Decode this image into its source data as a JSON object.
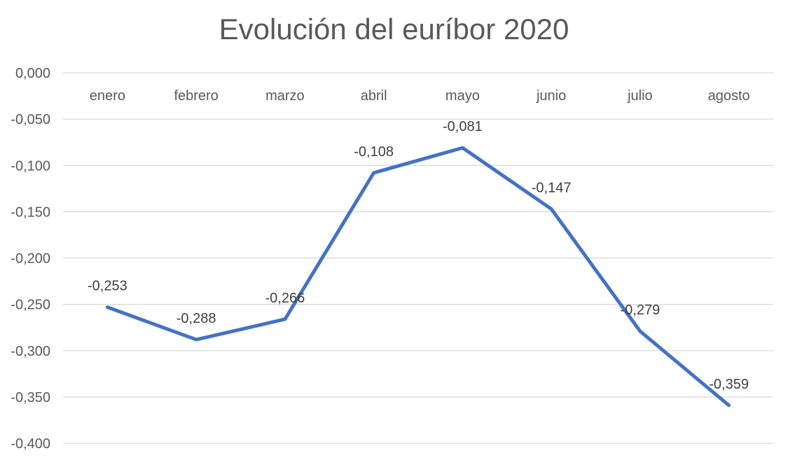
{
  "chart_data": {
    "type": "line",
    "title": "Evolución del euríbor 2020",
    "xlabel": "",
    "ylabel": "",
    "categories": [
      "enero",
      "febrero",
      "marzo",
      "abril",
      "mayo",
      "junio",
      "julio",
      "agosto"
    ],
    "series": [
      {
        "values": [
          -0.253,
          -0.288,
          -0.266,
          -0.108,
          -0.081,
          -0.147,
          -0.279,
          -0.359
        ],
        "labels": [
          "-0,253",
          "-0,288",
          "-0,266",
          "-0,108",
          "-0,081",
          "-0,147",
          "-0,279",
          "-0,359"
        ]
      }
    ],
    "yticks": [
      0,
      -0.05,
      -0.1,
      -0.15,
      -0.2,
      -0.25,
      -0.3,
      -0.35,
      -0.4
    ],
    "ytick_labels": [
      "0,000",
      "-0,050",
      "-0,100",
      "-0,150",
      "-0,200",
      "-0,250",
      "-0,300",
      "-0,350",
      "-0,400"
    ],
    "ylim": [
      -0.4,
      0
    ],
    "x_axis_position": "top",
    "grid": true,
    "legend": "none",
    "line_color": "#4472C4",
    "grid_color": "#D9D9D9"
  }
}
